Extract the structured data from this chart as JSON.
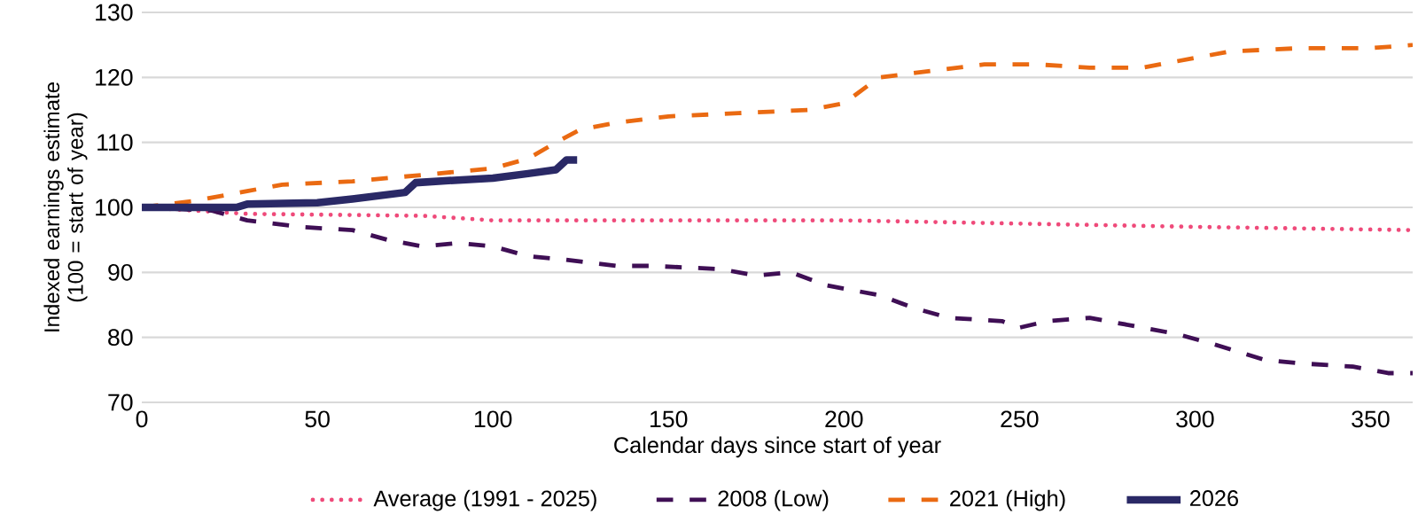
{
  "chart_data": {
    "type": "line",
    "xlabel": "Calendar days since start of year",
    "ylabel": "Indexed earnings estimate (100 = start of year)",
    "xlim": [
      0,
      362
    ],
    "xticks": [
      0,
      50,
      100,
      150,
      200,
      250,
      300,
      350
    ],
    "ylim": [
      70,
      130
    ],
    "yticks": [
      70,
      80,
      90,
      100,
      110,
      120,
      130
    ],
    "grid": "y",
    "legend": "bottom",
    "marker": "none",
    "series": [
      {
        "name": "Average (1991 - 2025)",
        "color": "#ef4a7a",
        "line_style": "dotted",
        "x": [
          0,
          30,
          80,
          100,
          200,
          250,
          300,
          362
        ],
        "values": [
          100,
          99,
          98.7,
          98,
          98,
          97.5,
          97,
          96.5
        ]
      },
      {
        "name": "2008 (Low)",
        "color": "#3f0f55",
        "line_style": "dashed",
        "x": [
          0,
          20,
          30,
          45,
          60,
          70,
          80,
          90,
          100,
          110,
          120,
          135,
          145,
          165,
          175,
          185,
          195,
          210,
          220,
          230,
          245,
          250,
          258,
          270,
          280,
          295,
          305,
          320,
          330,
          345,
          355,
          362
        ],
        "values": [
          100,
          99.5,
          98,
          97,
          96.5,
          95,
          94,
          94.5,
          94,
          92.5,
          92,
          91,
          91,
          90.5,
          89.5,
          90,
          88,
          86.5,
          84.5,
          83,
          82.5,
          81.5,
          82.5,
          83,
          82,
          80.5,
          79,
          76.5,
          76,
          75.5,
          74.5,
          74.5
        ]
      },
      {
        "name": "2021 (High)",
        "color": "#ea6a12",
        "line_style": "dashed",
        "x": [
          0,
          15,
          30,
          40,
          60,
          80,
          100,
          110,
          118,
          125,
          135,
          150,
          170,
          190,
          200,
          210,
          225,
          240,
          255,
          270,
          285,
          295,
          310,
          330,
          350,
          362
        ],
        "values": [
          100,
          101,
          102.5,
          103.5,
          104,
          105,
          106,
          107.5,
          110,
          112,
          113,
          114,
          114.5,
          115,
          116,
          120,
          121,
          122,
          122,
          121.5,
          121.5,
          122.5,
          124,
          124.5,
          124.5,
          125
        ]
      },
      {
        "name": "2026",
        "color": "#2a2966",
        "line_style": "solid",
        "x": [
          0,
          27,
          30,
          50,
          60,
          75,
          78,
          90,
          100,
          110,
          118,
          121,
          124
        ],
        "values": [
          100,
          100,
          100.5,
          100.7,
          101.3,
          102.3,
          103.8,
          104.2,
          104.5,
          105.2,
          105.8,
          107.3,
          107.3
        ]
      }
    ]
  }
}
